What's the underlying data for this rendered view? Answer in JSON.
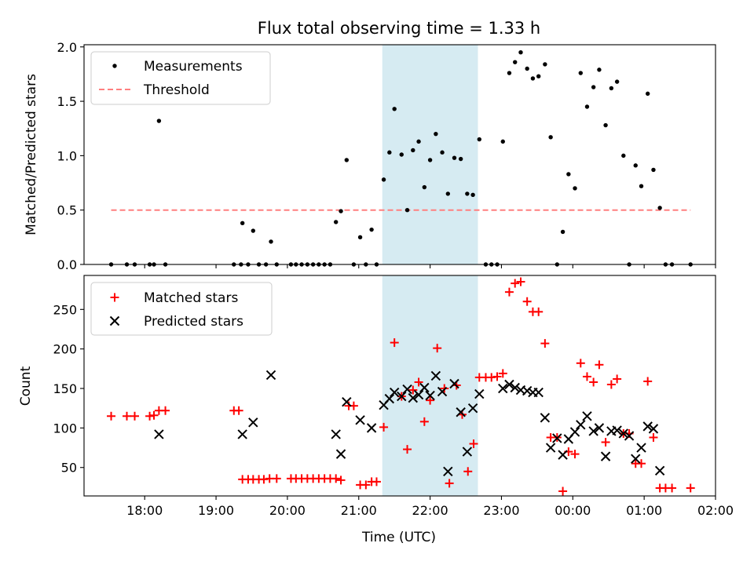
{
  "colors": {
    "shade": "#add8e6",
    "threshold": "#ff7f7f",
    "measurement": "#000000",
    "matched": "#ff0000",
    "predicted": "#000000"
  },
  "chart_data": [
    {
      "type": "scatter",
      "title": "Flux total observing time = 1.33 h",
      "xlabel": "",
      "ylabel": "Matched/Predicted stars",
      "x_unit": "hours since 00:00 UTC (values > 24 are after midnight)",
      "xlim": [
        17.15,
        26.0
      ],
      "ylim": [
        0,
        2.02
      ],
      "yticks": [
        0.0,
        0.5,
        1.0,
        1.5,
        2.0
      ],
      "ytick_labels": [
        "0.0",
        "0.5",
        "1.0",
        "1.5",
        "2.0"
      ],
      "shaded_span": [
        21.33,
        22.67
      ],
      "legend_location": "upper-left",
      "series": [
        {
          "name": "Measurements",
          "marker": "dot",
          "points": [
            [
              17.53,
              0
            ],
            [
              17.75,
              0
            ],
            [
              17.86,
              0
            ],
            [
              18.07,
              0
            ],
            [
              18.13,
              0
            ],
            [
              18.2,
              1.32
            ],
            [
              18.29,
              0
            ],
            [
              19.25,
              0
            ],
            [
              19.35,
              0
            ],
            [
              19.37,
              0.38
            ],
            [
              19.45,
              0
            ],
            [
              19.52,
              0.31
            ],
            [
              19.6,
              0
            ],
            [
              19.7,
              0
            ],
            [
              19.77,
              0.21
            ],
            [
              19.85,
              0
            ],
            [
              20.05,
              0
            ],
            [
              20.12,
              0
            ],
            [
              20.2,
              0
            ],
            [
              20.28,
              0
            ],
            [
              20.36,
              0
            ],
            [
              20.44,
              0
            ],
            [
              20.52,
              0
            ],
            [
              20.6,
              0
            ],
            [
              20.68,
              0.39
            ],
            [
              20.75,
              0.49
            ],
            [
              20.83,
              0.96
            ],
            [
              20.93,
              0
            ],
            [
              21.02,
              0.25
            ],
            [
              21.1,
              0
            ],
            [
              21.18,
              0.32
            ],
            [
              21.25,
              0
            ],
            [
              21.35,
              0.78
            ],
            [
              21.43,
              1.03
            ],
            [
              21.5,
              1.43
            ],
            [
              21.6,
              1.01
            ],
            [
              21.68,
              0.5
            ],
            [
              21.76,
              1.05
            ],
            [
              21.84,
              1.13
            ],
            [
              21.92,
              0.71
            ],
            [
              22.0,
              0.96
            ],
            [
              22.08,
              1.2
            ],
            [
              22.17,
              1.03
            ],
            [
              22.25,
              0.65
            ],
            [
              22.34,
              0.98
            ],
            [
              22.43,
              0.97
            ],
            [
              22.52,
              0.65
            ],
            [
              22.6,
              0.64
            ],
            [
              22.69,
              1.15
            ],
            [
              22.78,
              0
            ],
            [
              22.86,
              0
            ],
            [
              22.94,
              0
            ],
            [
              23.02,
              1.13
            ],
            [
              23.11,
              1.76
            ],
            [
              23.19,
              1.86
            ],
            [
              23.27,
              1.95
            ],
            [
              23.36,
              1.8
            ],
            [
              23.44,
              1.71
            ],
            [
              23.52,
              1.73
            ],
            [
              23.61,
              1.84
            ],
            [
              23.69,
              1.17
            ],
            [
              23.78,
              0
            ],
            [
              23.86,
              0.3
            ],
            [
              23.94,
              0.83
            ],
            [
              24.03,
              0.7
            ],
            [
              24.11,
              1.76
            ],
            [
              24.2,
              1.45
            ],
            [
              24.29,
              1.63
            ],
            [
              24.37,
              1.79
            ],
            [
              24.46,
              1.28
            ],
            [
              24.54,
              1.62
            ],
            [
              24.62,
              1.68
            ],
            [
              24.71,
              1.0
            ],
            [
              24.79,
              0
            ],
            [
              24.88,
              0.91
            ],
            [
              24.96,
              0.72
            ],
            [
              25.05,
              1.57
            ],
            [
              25.13,
              0.87
            ],
            [
              25.22,
              0.52
            ],
            [
              25.3,
              0
            ],
            [
              25.39,
              0
            ],
            [
              25.65,
              0
            ]
          ]
        },
        {
          "name": "Threshold",
          "style": "dashed",
          "x": [
            17.53,
            25.65
          ],
          "y": [
            0.5,
            0.5
          ]
        }
      ]
    },
    {
      "type": "scatter",
      "title": "",
      "xlabel": "Time (UTC)",
      "ylabel": "Count",
      "xlim": [
        17.15,
        26.0
      ],
      "ylim": [
        14,
        293
      ],
      "yticks": [
        50,
        100,
        150,
        200,
        250
      ],
      "ytick_labels": [
        "50",
        "100",
        "150",
        "200",
        "250"
      ],
      "xticks": [
        18,
        19,
        20,
        21,
        22,
        23,
        24,
        25,
        26
      ],
      "xtick_labels": [
        "18:00",
        "19:00",
        "20:00",
        "21:00",
        "22:00",
        "23:00",
        "00:00",
        "01:00",
        "02:00"
      ],
      "shaded_span": [
        21.33,
        22.67
      ],
      "legend_location": "upper-left",
      "series": [
        {
          "name": "Matched stars",
          "marker": "plus",
          "points": [
            [
              17.53,
              115
            ],
            [
              17.75,
              115
            ],
            [
              17.86,
              115
            ],
            [
              18.07,
              115
            ],
            [
              18.13,
              116
            ],
            [
              18.2,
              122
            ],
            [
              18.29,
              122
            ],
            [
              19.25,
              122
            ],
            [
              19.32,
              122
            ],
            [
              19.37,
              35
            ],
            [
              19.45,
              35
            ],
            [
              19.52,
              35
            ],
            [
              19.6,
              35
            ],
            [
              19.67,
              35
            ],
            [
              19.75,
              36
            ],
            [
              19.85,
              36
            ],
            [
              20.05,
              36
            ],
            [
              20.12,
              36
            ],
            [
              20.2,
              36
            ],
            [
              20.28,
              36
            ],
            [
              20.36,
              36
            ],
            [
              20.44,
              36
            ],
            [
              20.52,
              36
            ],
            [
              20.6,
              36
            ],
            [
              20.68,
              36
            ],
            [
              20.75,
              34
            ],
            [
              20.86,
              128
            ],
            [
              20.93,
              128
            ],
            [
              21.02,
              28
            ],
            [
              21.1,
              28
            ],
            [
              21.18,
              32
            ],
            [
              21.25,
              32
            ],
            [
              21.35,
              101
            ],
            [
              21.5,
              208
            ],
            [
              21.6,
              140
            ],
            [
              21.68,
              73
            ],
            [
              21.76,
              148
            ],
            [
              21.84,
              158
            ],
            [
              21.92,
              108
            ],
            [
              22.0,
              135
            ],
            [
              22.1,
              201
            ],
            [
              22.2,
              150
            ],
            [
              22.27,
              30
            ],
            [
              22.37,
              154
            ],
            [
              22.45,
              117
            ],
            [
              22.53,
              45
            ],
            [
              22.61,
              80
            ],
            [
              22.69,
              164
            ],
            [
              22.78,
              164
            ],
            [
              22.86,
              164
            ],
            [
              22.94,
              165
            ],
            [
              23.02,
              169
            ],
            [
              23.11,
              272
            ],
            [
              23.19,
              283
            ],
            [
              23.27,
              285
            ],
            [
              23.36,
              260
            ],
            [
              23.44,
              247
            ],
            [
              23.52,
              247
            ],
            [
              23.61,
              207
            ],
            [
              23.69,
              88
            ],
            [
              23.78,
              88
            ],
            [
              23.86,
              20
            ],
            [
              23.94,
              70
            ],
            [
              24.03,
              67
            ],
            [
              24.11,
              182
            ],
            [
              24.2,
              165
            ],
            [
              24.29,
              158
            ],
            [
              24.37,
              180
            ],
            [
              24.46,
              82
            ],
            [
              24.54,
              155
            ],
            [
              24.62,
              162
            ],
            [
              24.71,
              93
            ],
            [
              24.79,
              93
            ],
            [
              24.88,
              55
            ],
            [
              24.96,
              55
            ],
            [
              25.05,
              159
            ],
            [
              25.13,
              88
            ],
            [
              25.22,
              24
            ],
            [
              25.3,
              24
            ],
            [
              25.39,
              24
            ],
            [
              25.65,
              24
            ]
          ]
        },
        {
          "name": "Predicted stars",
          "marker": "x",
          "points": [
            [
              18.2,
              92
            ],
            [
              19.37,
              92
            ],
            [
              19.52,
              107
            ],
            [
              19.77,
              167
            ],
            [
              20.68,
              92
            ],
            [
              20.75,
              67
            ],
            [
              20.83,
              133
            ],
            [
              21.02,
              110
            ],
            [
              21.18,
              100
            ],
            [
              21.35,
              129
            ],
            [
              21.43,
              137
            ],
            [
              21.5,
              145
            ],
            [
              21.6,
              140
            ],
            [
              21.68,
              149
            ],
            [
              21.76,
              138
            ],
            [
              21.84,
              142
            ],
            [
              21.92,
              151
            ],
            [
              22.0,
              141
            ],
            [
              22.08,
              166
            ],
            [
              22.17,
              146
            ],
            [
              22.25,
              45
            ],
            [
              22.34,
              156
            ],
            [
              22.43,
              120
            ],
            [
              22.52,
              70
            ],
            [
              22.6,
              125
            ],
            [
              22.69,
              143
            ],
            [
              23.02,
              150
            ],
            [
              23.11,
              155
            ],
            [
              23.19,
              151
            ],
            [
              23.27,
              148
            ],
            [
              23.36,
              147
            ],
            [
              23.44,
              145
            ],
            [
              23.52,
              145
            ],
            [
              23.61,
              113
            ],
            [
              23.69,
              75
            ],
            [
              23.78,
              87
            ],
            [
              23.86,
              66
            ],
            [
              23.94,
              86
            ],
            [
              24.03,
              95
            ],
            [
              24.11,
              104
            ],
            [
              24.2,
              115
            ],
            [
              24.29,
              96
            ],
            [
              24.37,
              100
            ],
            [
              24.46,
              64
            ],
            [
              24.54,
              96
            ],
            [
              24.62,
              97
            ],
            [
              24.71,
              93
            ],
            [
              24.79,
              90
            ],
            [
              24.88,
              61
            ],
            [
              24.96,
              75
            ],
            [
              25.05,
              102
            ],
            [
              25.13,
              99
            ],
            [
              25.22,
              46
            ]
          ]
        }
      ]
    }
  ]
}
